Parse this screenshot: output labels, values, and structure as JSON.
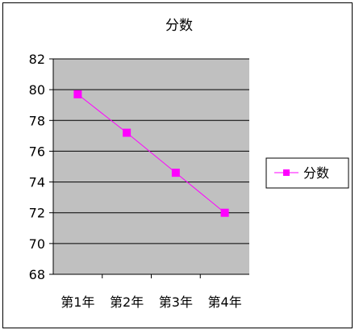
{
  "chart_data": {
    "type": "line",
    "title": "分数",
    "categories": [
      "第1年",
      "第2年",
      "第3年",
      "第4年"
    ],
    "series": [
      {
        "name": "分数",
        "values": [
          79.7,
          77.2,
          74.6,
          72.0
        ],
        "color": "#ff00ff"
      }
    ],
    "ylim": [
      68,
      82
    ],
    "yticks": [
      68,
      70,
      72,
      74,
      76,
      78,
      80,
      82
    ],
    "xlabel": "",
    "ylabel": "",
    "grid": true,
    "legend_position": "right",
    "plot_background": "#c0c0c0"
  }
}
